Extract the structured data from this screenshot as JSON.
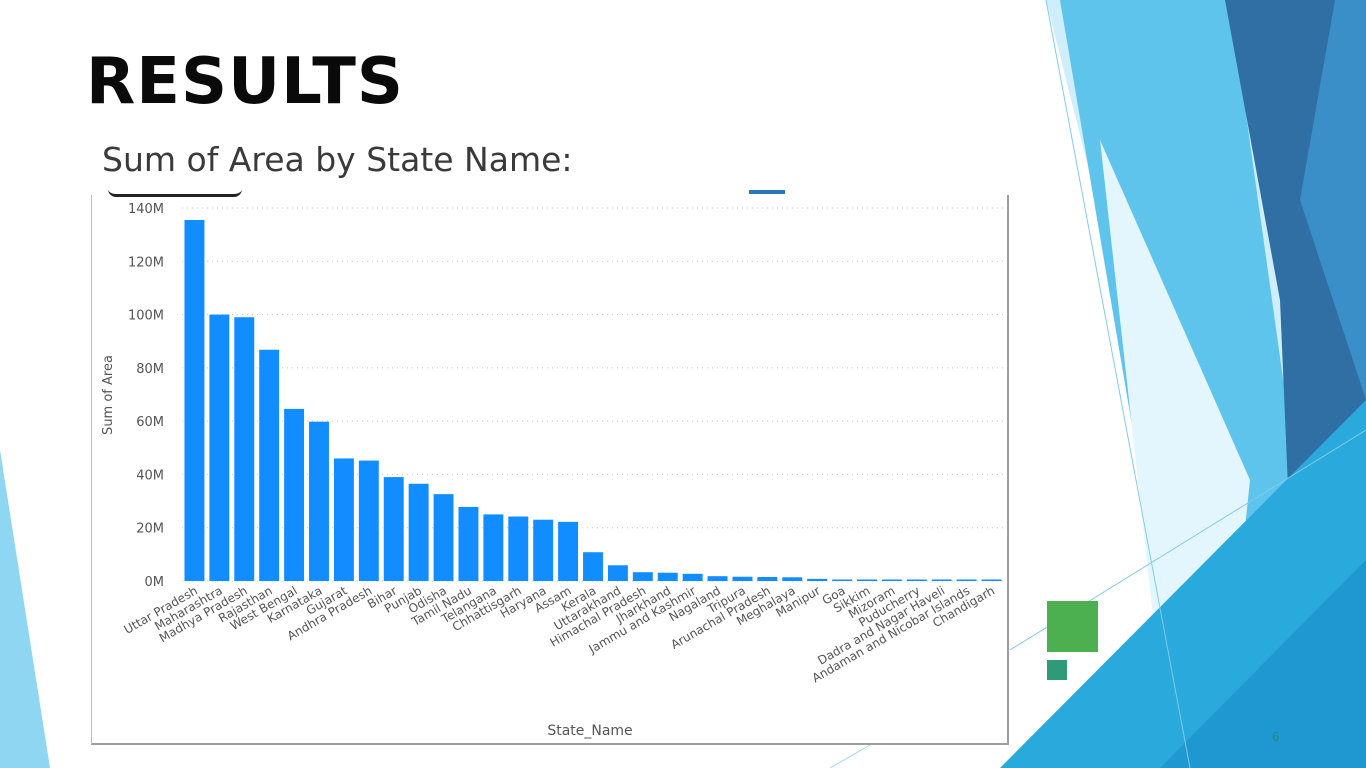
{
  "slide": {
    "title": "RESULTS",
    "subtitle": "Sum of Area by State Name:",
    "page_number": "6"
  },
  "colors": {
    "bar": "#118DFF",
    "gridline": "#c8c8c8",
    "accent_green": "#4CAF50",
    "accent_teal": "#2e9a78"
  },
  "chart_data": {
    "type": "bar",
    "xlabel": "State_Name",
    "ylabel": "Sum of Area",
    "ylim": [
      0,
      140000000
    ],
    "yticks": [
      "0M",
      "20M",
      "40M",
      "60M",
      "80M",
      "100M",
      "120M",
      "140M"
    ],
    "grid": true,
    "categories": [
      "Uttar Pradesh",
      "Maharashtra",
      "Madhya Pradesh",
      "Rajasthan",
      "West Bengal",
      "Karnataka",
      "Gujarat",
      "Andhra Pradesh",
      "Bihar",
      "Punjab",
      "Odisha",
      "Tamil Nadu",
      "Telangana",
      "Chhattisgarh",
      "Haryana",
      "Assam",
      "Kerala",
      "Uttarakhand",
      "Himachal Pradesh",
      "Jharkhand",
      "Jammu and Kashmir",
      "Nagaland",
      "Tripura",
      "Arunachal Pradesh",
      "Meghalaya",
      "Manipur",
      "Goa",
      "Sikkim",
      "Mizoram",
      "Puducherry",
      "Dadra and Nagar Haveli",
      "Andaman and Nicobar Islands",
      "Chandigarh"
    ],
    "values": [
      135500000,
      100000000,
      99000000,
      86800000,
      64600000,
      59800000,
      46000000,
      45200000,
      39000000,
      36500000,
      32600000,
      27800000,
      25000000,
      24200000,
      23000000,
      22200000,
      10800000,
      5900000,
      3300000,
      3100000,
      2700000,
      1800000,
      1600000,
      1500000,
      1400000,
      800000,
      500000,
      400000,
      300000,
      250000,
      200000,
      150000,
      100000
    ]
  }
}
